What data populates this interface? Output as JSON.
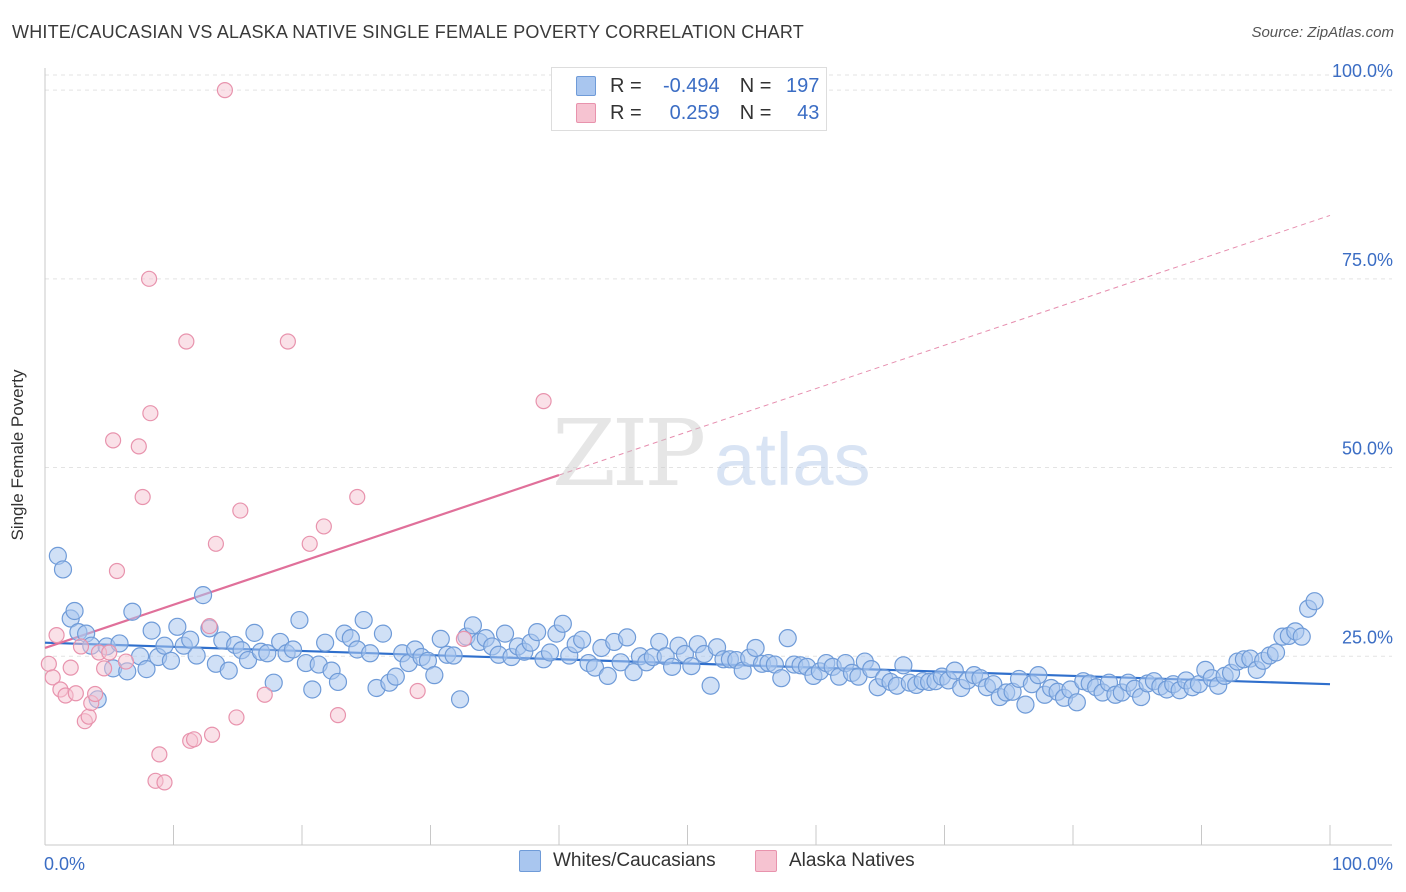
{
  "title": "WHITE/CAUCASIAN VS ALASKA NATIVE SINGLE FEMALE POVERTY CORRELATION CHART",
  "source": "Source: ZipAtlas.com",
  "watermark": {
    "zip": "ZIP",
    "atlas": "atlas"
  },
  "legend_top": {
    "r_label": "R =",
    "n_label": "N =",
    "rows": [
      {
        "r": "-0.494",
        "n": "197"
      },
      {
        "r": "0.259",
        "n": "43"
      }
    ]
  },
  "legend_bottom": [
    "Whites/Caucasians",
    "Alaska Natives"
  ],
  "colors": {
    "blue_fill": "#a9c6ef",
    "blue_stroke": "#6f9bd8",
    "blue_line": "#2f6fcc",
    "pink_fill": "#f6c3d1",
    "pink_stroke": "#e893ad",
    "pink_line": "#e0709a",
    "tick_text": "#3b6dc4",
    "grid": "#e3e3e3"
  },
  "chart_data": {
    "type": "scatter",
    "title": "WHITE/CAUCASIAN VS ALASKA NATIVE SINGLE FEMALE POVERTY CORRELATION CHART",
    "xlabel": "",
    "ylabel": "Single Female Poverty",
    "xlim": [
      0,
      100
    ],
    "ylim": [
      0,
      102
    ],
    "x_tick_labels": [
      "0.0%",
      "100.0%"
    ],
    "y_ticks": [
      25,
      50,
      75,
      100
    ],
    "y_tick_labels": [
      "25.0%",
      "50.0%",
      "75.0%",
      "100.0%"
    ],
    "grid": true,
    "series": [
      {
        "name": "Whites/Caucasians",
        "r": -0.494,
        "n": 197,
        "trend": {
          "x0": 0,
          "y0": 26.8,
          "x1": 100,
          "y1": 21.3
        },
        "points": [
          [
            1,
            38.3
          ],
          [
            1.4,
            36.5
          ],
          [
            2,
            30
          ],
          [
            2.3,
            31
          ],
          [
            2.6,
            28.2
          ],
          [
            3.2,
            28
          ],
          [
            3.6,
            26.4
          ],
          [
            4.1,
            19.3
          ],
          [
            4.8,
            26.3
          ],
          [
            5.3,
            23.4
          ],
          [
            5.8,
            26.7
          ],
          [
            6.4,
            23
          ],
          [
            6.8,
            30.9
          ],
          [
            7.4,
            25
          ],
          [
            7.9,
            23.3
          ],
          [
            8.3,
            28.4
          ],
          [
            8.8,
            24.9
          ],
          [
            9.3,
            26.4
          ],
          [
            9.8,
            24.4
          ],
          [
            10.3,
            28.9
          ],
          [
            10.8,
            26.4
          ],
          [
            11.3,
            27.2
          ],
          [
            11.8,
            25.1
          ],
          [
            12.3,
            33.1
          ],
          [
            12.8,
            28.7
          ],
          [
            13.3,
            24
          ],
          [
            13.8,
            27.1
          ],
          [
            14.3,
            23.1
          ],
          [
            14.8,
            26.5
          ],
          [
            15.3,
            25.8
          ],
          [
            15.8,
            24.5
          ],
          [
            16.3,
            28.1
          ],
          [
            16.8,
            25.6
          ],
          [
            17.3,
            25.4
          ],
          [
            17.8,
            21.5
          ],
          [
            18.3,
            26.9
          ],
          [
            18.8,
            25.4
          ],
          [
            19.3,
            25.9
          ],
          [
            19.8,
            29.8
          ],
          [
            20.3,
            24.1
          ],
          [
            20.8,
            20.6
          ],
          [
            21.3,
            23.9
          ],
          [
            21.8,
            26.8
          ],
          [
            22.3,
            23.1
          ],
          [
            22.8,
            21.6
          ],
          [
            23.3,
            28
          ],
          [
            23.8,
            27.4
          ],
          [
            24.3,
            25.9
          ],
          [
            24.8,
            29.8
          ],
          [
            25.3,
            25.4
          ],
          [
            25.8,
            20.8
          ],
          [
            26.3,
            28
          ],
          [
            26.8,
            21.5
          ],
          [
            27.3,
            22.3
          ],
          [
            27.8,
            25.4
          ],
          [
            28.3,
            24.1
          ],
          [
            28.8,
            25.9
          ],
          [
            29.3,
            24.9
          ],
          [
            29.8,
            24.4
          ],
          [
            30.3,
            22.5
          ],
          [
            30.8,
            27.3
          ],
          [
            31.3,
            25.2
          ],
          [
            31.8,
            25.1
          ],
          [
            32.3,
            19.3
          ],
          [
            32.8,
            27.6
          ],
          [
            33.3,
            29.1
          ],
          [
            33.8,
            26.9
          ],
          [
            34.3,
            27.4
          ],
          [
            34.8,
            26.3
          ],
          [
            35.3,
            25.2
          ],
          [
            35.8,
            28
          ],
          [
            36.3,
            24.9
          ],
          [
            36.8,
            26.3
          ],
          [
            37.3,
            25.6
          ],
          [
            37.8,
            26.8
          ],
          [
            38.3,
            28.2
          ],
          [
            38.8,
            24.6
          ],
          [
            39.3,
            25.5
          ],
          [
            39.8,
            28
          ],
          [
            40.3,
            29.3
          ],
          [
            40.8,
            25.1
          ],
          [
            41.3,
            26.6
          ],
          [
            41.8,
            27.2
          ],
          [
            42.3,
            24.1
          ],
          [
            42.8,
            23.5
          ],
          [
            43.3,
            26.1
          ],
          [
            43.8,
            22.4
          ],
          [
            44.3,
            26.9
          ],
          [
            44.8,
            24.2
          ],
          [
            45.3,
            27.5
          ],
          [
            45.8,
            22.9
          ],
          [
            46.3,
            25
          ],
          [
            46.8,
            24.2
          ],
          [
            47.3,
            24.9
          ],
          [
            47.8,
            26.9
          ],
          [
            48.3,
            25
          ],
          [
            48.8,
            23.6
          ],
          [
            49.3,
            26.4
          ],
          [
            49.8,
            25.3
          ],
          [
            50.3,
            23.7
          ],
          [
            50.8,
            26.6
          ],
          [
            51.3,
            25.3
          ],
          [
            51.8,
            21.1
          ],
          [
            52.3,
            26.2
          ],
          [
            52.8,
            24.6
          ],
          [
            53.3,
            24.6
          ],
          [
            53.8,
            24.5
          ],
          [
            54.3,
            23.1
          ],
          [
            54.8,
            24.8
          ],
          [
            55.3,
            26.1
          ],
          [
            55.8,
            24
          ],
          [
            56.3,
            24.1
          ],
          [
            56.8,
            23.9
          ],
          [
            57.3,
            22.1
          ],
          [
            57.8,
            27.4
          ],
          [
            58.3,
            23.9
          ],
          [
            58.8,
            23.8
          ],
          [
            59.3,
            23.6
          ],
          [
            59.8,
            22.4
          ],
          [
            60.3,
            23
          ],
          [
            60.8,
            24.1
          ],
          [
            61.3,
            23.6
          ],
          [
            61.8,
            22.3
          ],
          [
            62.3,
            24.1
          ],
          [
            62.8,
            22.8
          ],
          [
            63.3,
            22.3
          ],
          [
            63.8,
            24.3
          ],
          [
            64.3,
            23.3
          ],
          [
            64.8,
            20.9
          ],
          [
            65.3,
            22.1
          ],
          [
            65.8,
            21.6
          ],
          [
            66.3,
            21.1
          ],
          [
            66.8,
            23.8
          ],
          [
            67.3,
            21.5
          ],
          [
            67.8,
            21.2
          ],
          [
            68.3,
            21.7
          ],
          [
            68.8,
            21.6
          ],
          [
            69.3,
            21.7
          ],
          [
            69.8,
            22.3
          ],
          [
            70.3,
            21.8
          ],
          [
            70.8,
            23.1
          ],
          [
            71.3,
            20.8
          ],
          [
            71.8,
            21.8
          ],
          [
            72.3,
            22.5
          ],
          [
            72.8,
            22.1
          ],
          [
            73.3,
            20.9
          ],
          [
            73.8,
            21.3
          ],
          [
            74.3,
            19.6
          ],
          [
            74.8,
            20.2
          ],
          [
            75.3,
            20.3
          ],
          [
            75.8,
            22
          ],
          [
            76.3,
            18.6
          ],
          [
            76.8,
            21.3
          ],
          [
            77.3,
            22.5
          ],
          [
            77.8,
            19.9
          ],
          [
            78.3,
            20.8
          ],
          [
            78.8,
            20.3
          ],
          [
            79.3,
            19.5
          ],
          [
            79.8,
            20.6
          ],
          [
            80.3,
            18.9
          ],
          [
            80.8,
            21.7
          ],
          [
            81.3,
            21.4
          ],
          [
            81.8,
            20.9
          ],
          [
            82.3,
            20.2
          ],
          [
            82.8,
            21.5
          ],
          [
            83.3,
            19.9
          ],
          [
            83.8,
            20.2
          ],
          [
            84.3,
            21.5
          ],
          [
            84.8,
            20.7
          ],
          [
            85.3,
            19.6
          ],
          [
            85.8,
            21.4
          ],
          [
            86.3,
            21.7
          ],
          [
            86.8,
            21
          ],
          [
            87.3,
            20.6
          ],
          [
            87.8,
            21.3
          ],
          [
            88.3,
            20.5
          ],
          [
            88.8,
            21.8
          ],
          [
            89.3,
            20.9
          ],
          [
            89.8,
            21.3
          ],
          [
            90.3,
            23.2
          ],
          [
            90.8,
            22.1
          ],
          [
            91.3,
            21.1
          ],
          [
            91.8,
            22.4
          ],
          [
            92.3,
            22.8
          ],
          [
            92.8,
            24.3
          ],
          [
            93.3,
            24.6
          ],
          [
            93.8,
            24.7
          ],
          [
            94.3,
            23.2
          ],
          [
            94.8,
            24.4
          ],
          [
            95.3,
            25.1
          ],
          [
            95.8,
            25.5
          ],
          [
            96.3,
            27.6
          ],
          [
            96.8,
            27.7
          ],
          [
            97.3,
            28.3
          ],
          [
            97.8,
            27.6
          ],
          [
            98.3,
            31.3
          ],
          [
            98.8,
            32.3
          ]
        ]
      },
      {
        "name": "Alaska Natives",
        "r": 0.259,
        "n": 43,
        "trend_solid": {
          "x0": 0,
          "y0": 26.1,
          "x1": 40,
          "y1": 49
        },
        "trend_dashed": {
          "x0": 40,
          "y0": 49,
          "x1": 100,
          "y1": 83.4
        },
        "points": [
          [
            0.3,
            24
          ],
          [
            0.6,
            22.2
          ],
          [
            0.9,
            27.8
          ],
          [
            1.2,
            20.6
          ],
          [
            1.6,
            19.8
          ],
          [
            2,
            23.5
          ],
          [
            2.4,
            20.1
          ],
          [
            2.8,
            26.3
          ],
          [
            3.1,
            16.4
          ],
          [
            3.4,
            17
          ],
          [
            3.6,
            18.8
          ],
          [
            3.9,
            20
          ],
          [
            4.2,
            25.5
          ],
          [
            4.6,
            23.4
          ],
          [
            5,
            25.5
          ],
          [
            5.3,
            53.6
          ],
          [
            5.6,
            36.3
          ],
          [
            6.3,
            24.3
          ],
          [
            7.3,
            52.8
          ],
          [
            7.6,
            46.1
          ],
          [
            8.1,
            75
          ],
          [
            8.2,
            57.2
          ],
          [
            8.6,
            8.5
          ],
          [
            8.9,
            12
          ],
          [
            9.3,
            8.3
          ],
          [
            11,
            66.7
          ],
          [
            11.3,
            13.8
          ],
          [
            11.6,
            14
          ],
          [
            12.8,
            29
          ],
          [
            13,
            14.6
          ],
          [
            13.3,
            39.9
          ],
          [
            14,
            100
          ],
          [
            14.9,
            16.9
          ],
          [
            15.2,
            44.3
          ],
          [
            17.1,
            19.9
          ],
          [
            18.9,
            66.7
          ],
          [
            20.6,
            39.9
          ],
          [
            21.7,
            42.2
          ],
          [
            22.8,
            17.2
          ],
          [
            24.3,
            46.1
          ],
          [
            29,
            20.4
          ],
          [
            32.6,
            27.3
          ],
          [
            38.8,
            58.8
          ]
        ]
      }
    ]
  }
}
